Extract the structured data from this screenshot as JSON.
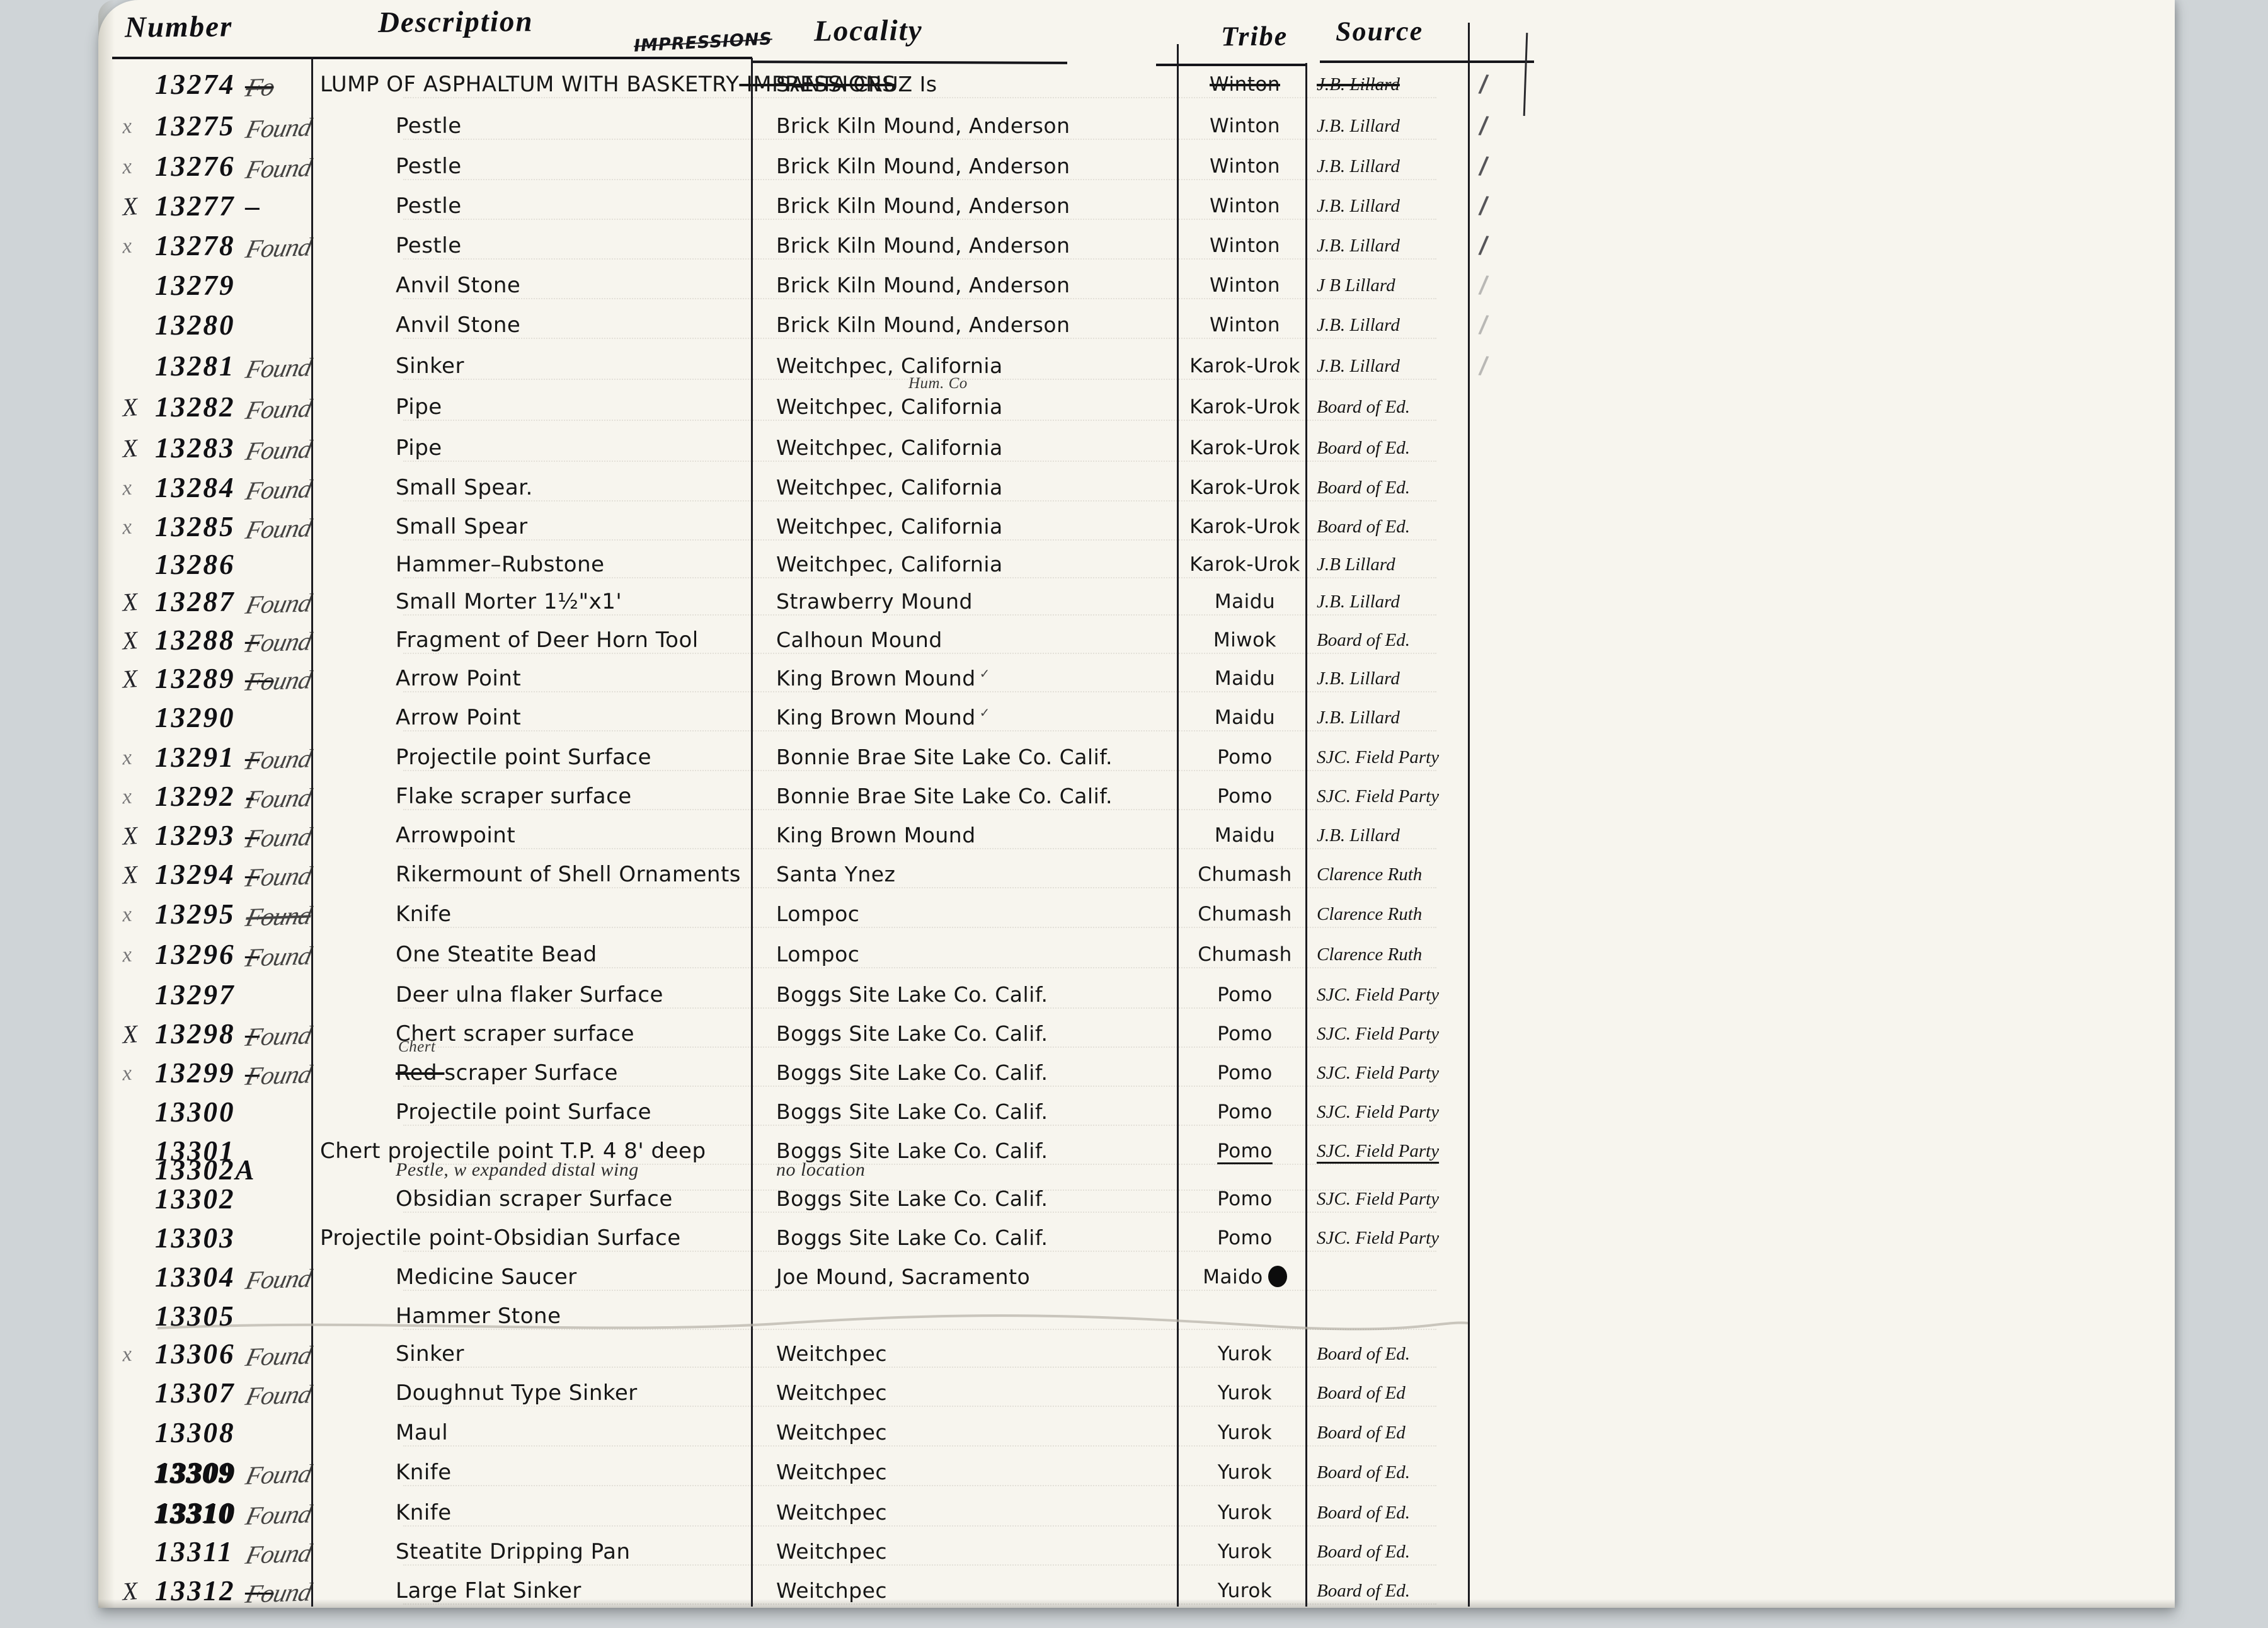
{
  "colors": {
    "ink": "#15151a",
    "paper": "#f7f5ee",
    "background": "#cfd4d7",
    "pencil": "#b5b0a6"
  },
  "table": {
    "headers": {
      "number": "Number",
      "description": "Description",
      "locality": "Locality",
      "tribe": "Tribe",
      "source": "Source"
    },
    "header_note": "IMPRESSIONS",
    "rows": [
      {
        "xmark": "",
        "number": "13274",
        "dash": "—",
        "found": "Fo",
        "found_struck": true,
        "desc": "LUMP OF ASPHALTUM WITH BASKETRY",
        "desc_struck_after": "IMPRESSIONS",
        "desc_wide": true,
        "locality": "SANTA CRUZ Is",
        "tribe": "Winton",
        "tribe_struck": true,
        "source": "J.B. Lillard",
        "source_struck": true,
        "tick": "strong"
      },
      {
        "xmark": "x",
        "number": "13275",
        "found": "Found",
        "desc": "Pestle",
        "locality": "Brick Kiln Mound, Anderson",
        "tribe": "Winton",
        "source": "J.B. Lillard",
        "tick": "strong"
      },
      {
        "xmark": "x",
        "number": "13276",
        "found": "Found",
        "desc": "Pestle",
        "locality": "Brick Kiln Mound, Anderson",
        "tribe": "Winton",
        "source": "J.B. Lillard",
        "tick": "strong"
      },
      {
        "xmark": "X",
        "number": "13277",
        "dash": "–",
        "found": "",
        "desc": "Pestle",
        "locality": "Brick Kiln Mound, Anderson",
        "tribe": "Winton",
        "source": "J.B. Lillard",
        "tick": "strong"
      },
      {
        "xmark": "x",
        "number": "13278",
        "found": "Found",
        "desc": "Pestle",
        "locality": "Brick Kiln Mound, Anderson",
        "tribe": "Winton",
        "source": "J.B. Lillard",
        "tick": "strong"
      },
      {
        "xmark": "",
        "number": "13279",
        "found": "",
        "desc": "Anvil Stone",
        "locality": "Brick Kiln Mound, Anderson",
        "tribe": "Winton",
        "source": "J B Lillard",
        "tick": "faint"
      },
      {
        "xmark": "",
        "number": "13280",
        "found": "",
        "desc": "Anvil Stone",
        "locality": "Brick Kiln Mound, Anderson",
        "tribe": "Winton",
        "source": "J.B. Lillard",
        "tick": "faint"
      },
      {
        "xmark": "",
        "number": "13281",
        "found": "Found",
        "desc": "Sinker",
        "locality": "Weitchpec, California",
        "tribe": "Karok-Urok",
        "source": "J.B. Lillard",
        "tick": "faint"
      },
      {
        "xmark": "X",
        "number": "13282",
        "found": "Found",
        "desc": "Pipe",
        "locality": "Weitchpec, California",
        "locality_note": "Hum. Co",
        "tribe": "Karok-Urok",
        "source": "Board of Ed."
      },
      {
        "xmark": "X",
        "number": "13283",
        "found": "Found",
        "desc": "Pipe",
        "locality": "Weitchpec, California",
        "tribe": "Karok-Urok",
        "source": "Board of Ed."
      },
      {
        "xmark": "x",
        "number": "13284",
        "found": "Found",
        "desc": "Small Spear.",
        "locality": "Weitchpec, California",
        "tribe": "Karok-Urok",
        "source": "Board of Ed."
      },
      {
        "xmark": "x",
        "number": "13285",
        "found": "Found",
        "desc": "Small Spear",
        "locality": "Weitchpec, California",
        "tribe": "Karok-Urok",
        "source": "Board of Ed."
      },
      {
        "xmark": "",
        "number": "13286",
        "found": "",
        "desc": "Hammer–Rubstone",
        "locality": "Weitchpec, California",
        "tribe": "Karok-Urok",
        "source": "J.B Lillard"
      },
      {
        "xmark": "X",
        "number": "13287",
        "found": "Found",
        "desc": "Small Morter 1½\"x1'",
        "locality": "Strawberry Mound",
        "tribe": "Maidu",
        "source": "J.B. Lillard"
      },
      {
        "xmark": "X",
        "number": "13288",
        "dash": "–",
        "found": "Found",
        "desc": "Fragment of Deer Horn Tool",
        "locality": "Calhoun Mound",
        "tribe": "Miwok",
        "source": "Board of Ed."
      },
      {
        "xmark": "X",
        "number": "13289",
        "dash": "—",
        "found": "Found",
        "desc": "Arrow Point",
        "locality": "King Brown Mound",
        "locality_check": true,
        "tribe": "Maidu",
        "source": "J.B. Lillard"
      },
      {
        "xmark": "",
        "number": "13290",
        "found": "",
        "desc": "Arrow Point",
        "locality": "King Brown Mound",
        "locality_check": true,
        "tribe": "Maidu",
        "source": "J.B. Lillard"
      },
      {
        "xmark": "x",
        "number": "13291",
        "dash": "–",
        "found": "Found",
        "desc": "Projectile point Surface",
        "locality": "Bonnie Brae Site Lake Co. Calif.",
        "tribe": "Pomo",
        "source": "SJC. Field Party"
      },
      {
        "xmark": "x",
        "number": "13292",
        "dash": "-",
        "found": "Found",
        "desc": "Flake scraper surface",
        "locality": "Bonnie Brae Site Lake Co. Calif.",
        "tribe": "Pomo",
        "source": "SJC. Field Party"
      },
      {
        "xmark": "X",
        "number": "13293",
        "dash": "–",
        "found": "Found",
        "desc": "Arrowpoint",
        "locality": "King Brown Mound",
        "tribe": "Maidu",
        "source": "J.B. Lillard"
      },
      {
        "xmark": "X",
        "number": "13294",
        "dash": "–",
        "found": "Found",
        "desc": "Rikermount of Shell Ornaments",
        "locality": "Santa Ynez",
        "tribe": "Chumash",
        "source": "Clarence Ruth"
      },
      {
        "xmark": "x",
        "number": "13295",
        "found": "Found",
        "found_struck": true,
        "desc": "Knife",
        "locality": "Lompoc",
        "tribe": "Chumash",
        "source": "Clarence Ruth"
      },
      {
        "xmark": "x",
        "number": "13296",
        "dash": "–",
        "found": "Found",
        "desc": "One Steatite Bead",
        "locality": "Lompoc",
        "tribe": "Chumash",
        "source": "Clarence Ruth"
      },
      {
        "xmark": "",
        "number": "13297",
        "found": "",
        "desc": "Deer ulna flaker Surface",
        "locality": "Boggs Site Lake Co. Calif.",
        "tribe": "Pomo",
        "source": "SJC. Field Party"
      },
      {
        "xmark": "X",
        "number": "13298",
        "dash": "–",
        "found": "Found",
        "desc": "Chert scraper surface",
        "locality": "Boggs Site Lake Co. Calif.",
        "tribe": "Pomo",
        "source": "SJC. Field Party"
      },
      {
        "xmark": "x",
        "number": "13299",
        "dash": "–",
        "found": "Found",
        "desc": "scraper Surface",
        "desc_struck_before": "Red",
        "desc_note_above": "Chert",
        "locality": "Boggs Site Lake Co. Calif.",
        "tribe": "Pomo",
        "source": "SJC. Field Party"
      },
      {
        "xmark": "",
        "number": "13300",
        "found": "",
        "desc": "Projectile point Surface",
        "locality": "Boggs Site Lake Co. Calif.",
        "tribe": "Pomo",
        "source": "SJC. Field Party"
      },
      {
        "xmark": "",
        "number": "13301",
        "found": "",
        "desc": "Chert projectile point T.P. 4 8' deep",
        "desc_wide": true,
        "locality": "Boggs Site Lake Co. Calif.",
        "tribe": "Pomo",
        "tribe_underline": true,
        "source": "SJC. Field Party",
        "source_underline": true
      },
      {
        "xmark": "",
        "number": "13302A",
        "found": "",
        "desc": "Pestle, w expanded distal wing",
        "desc_cursive": true,
        "locality": "no location",
        "locality_cursive": true,
        "tribe": "",
        "source": "",
        "half": true
      },
      {
        "xmark": "",
        "number": "13302",
        "found": "",
        "desc": "Obsidian scraper Surface",
        "locality": "Boggs Site Lake Co. Calif.",
        "tribe": "Pomo",
        "source": "SJC. Field Party"
      },
      {
        "xmark": "",
        "number": "13303",
        "found": "",
        "desc": "Projectile point-Obsidian Surface",
        "desc_wide": true,
        "locality": "Boggs Site Lake Co. Calif.",
        "tribe": "Pomo",
        "source": "SJC. Field Party"
      },
      {
        "xmark": "",
        "number": "13304",
        "found": "Found",
        "desc": "Medicine Saucer",
        "locality": "Joe Mound, Sacramento",
        "tribe": "Maido",
        "tribe_blot": true,
        "source": ""
      },
      {
        "xmark": "",
        "number": "13305",
        "found": "",
        "desc": "Hammer Stone",
        "locality": "",
        "tribe": "",
        "source": ""
      },
      {
        "xmark": "x",
        "number": "13306",
        "found": "Found",
        "desc": "Sinker",
        "locality": "Weitchpec",
        "tribe": "Yurok",
        "source": "Board of Ed."
      },
      {
        "xmark": "",
        "number": "13307",
        "found": "Found",
        "desc": "Doughnut Type Sinker",
        "locality": "Weitchpec",
        "tribe": "Yurok",
        "source": "Board of Ed"
      },
      {
        "xmark": "",
        "number": "13308",
        "found": "",
        "desc": "Maul",
        "locality": "Weitchpec",
        "tribe": "Yurok",
        "source": "Board of Ed"
      },
      {
        "xmark": "",
        "number": "13309",
        "number_blot": true,
        "found": "Found",
        "desc": "Knife",
        "locality": "Weitchpec",
        "tribe": "Yurok",
        "source": "Board of Ed."
      },
      {
        "xmark": "",
        "number": "13310",
        "number_blot": true,
        "found": "Found",
        "desc": "Knife",
        "locality": "Weitchpec",
        "tribe": "Yurok",
        "source": "Board of Ed."
      },
      {
        "xmark": "",
        "number": "13311",
        "found": "Found",
        "desc": "Steatite Dripping Pan",
        "locality": "Weitchpec",
        "tribe": "Yurok",
        "source": "Board of Ed."
      },
      {
        "xmark": "X",
        "number": "13312",
        "dash": "—",
        "found": "Found",
        "desc": "Large Flat Sinker",
        "locality": "Weitchpec",
        "tribe": "Yurok",
        "source": "Board of Ed."
      }
    ]
  }
}
